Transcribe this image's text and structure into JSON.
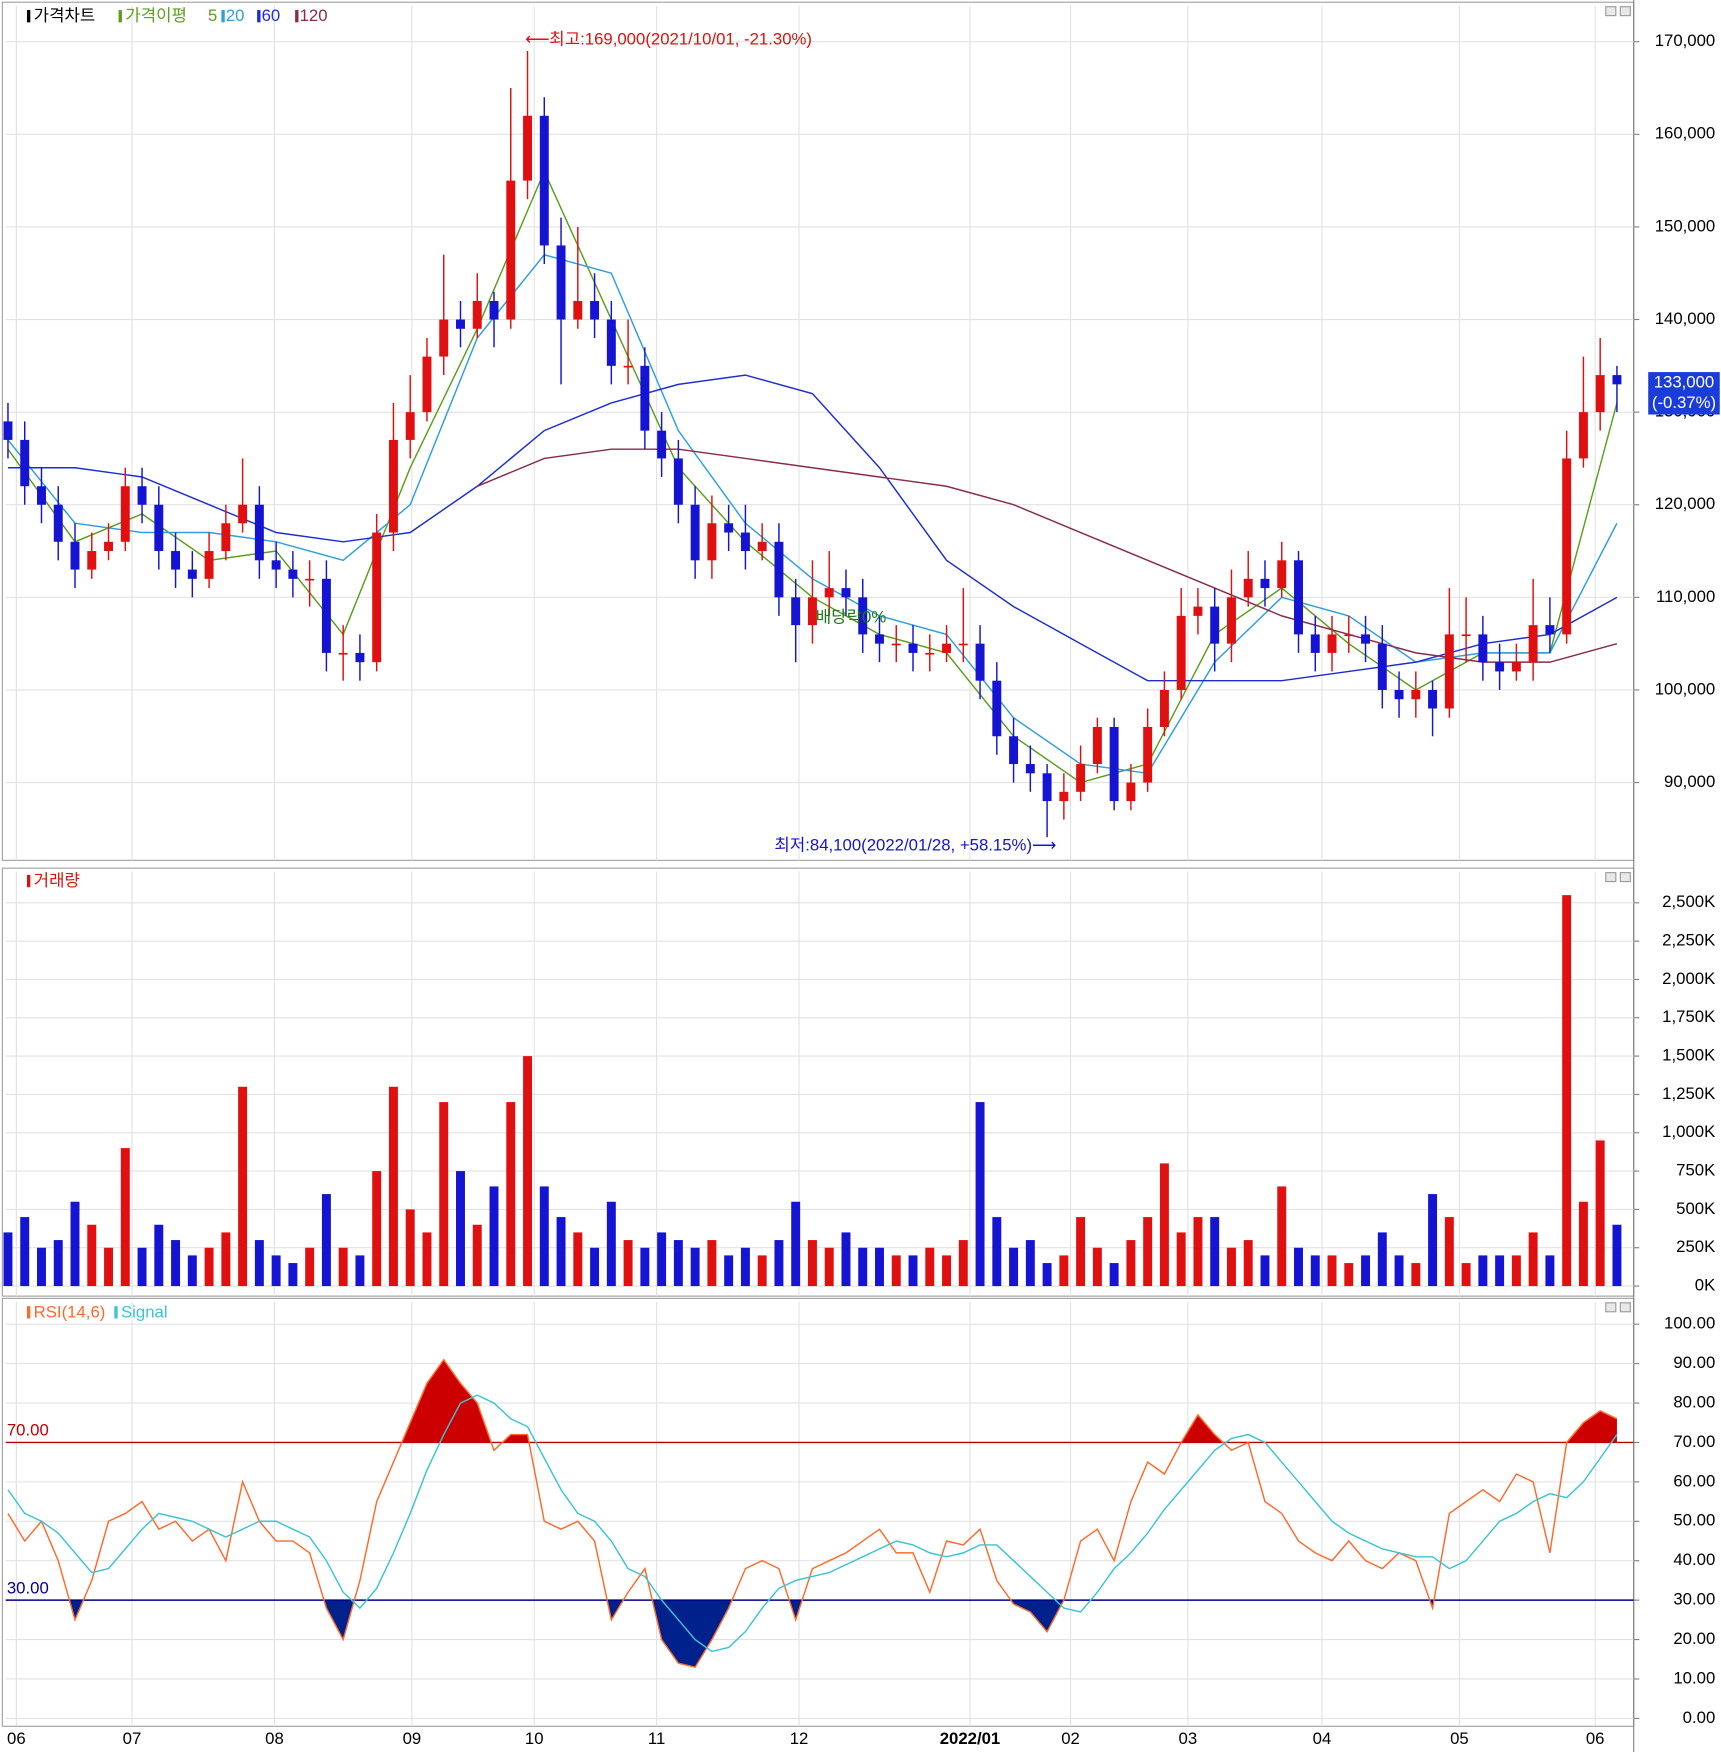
{
  "chart_data": [
    {
      "type": "candlestick",
      "name": "가격차트",
      "up_color": "#e01010",
      "down_color": "#1414d2",
      "open": [
        129000,
        127000,
        122000,
        120000,
        116000,
        113000,
        115000,
        116000,
        122000,
        120000,
        115000,
        113000,
        112000,
        115000,
        118000,
        120000,
        114000,
        113000,
        112000,
        112000,
        104000,
        104000,
        103000,
        117000,
        127000,
        130000,
        136000,
        140000,
        139000,
        142000,
        140000,
        155000,
        162000,
        148000,
        140000,
        142000,
        140000,
        135000,
        135000,
        128000,
        125000,
        120000,
        114000,
        118000,
        117000,
        115000,
        116000,
        110000,
        107000,
        110000,
        111000,
        110000,
        106000,
        105000,
        105000,
        104000,
        104000,
        105000,
        105000,
        101000,
        95000,
        92000,
        91000,
        88000,
        89000,
        92000,
        96000,
        88000,
        90000,
        96000,
        100000,
        108000,
        109000,
        105000,
        110000,
        112000,
        111000,
        114000,
        106000,
        104000,
        106000,
        106000,
        105000,
        100000,
        99000,
        100000,
        98000,
        106000,
        106000,
        103000,
        102000,
        103000,
        107000,
        106000,
        125000,
        130000,
        134000
      ],
      "high": [
        131000,
        129000,
        124000,
        122000,
        118000,
        117000,
        118000,
        124000,
        124000,
        122000,
        117000,
        115000,
        117000,
        120000,
        125000,
        122000,
        116000,
        115000,
        114000,
        114000,
        107000,
        106000,
        119000,
        131000,
        134000,
        138000,
        147000,
        142000,
        145000,
        143000,
        165000,
        169000,
        164000,
        151000,
        150000,
        145000,
        142000,
        140000,
        137000,
        130000,
        127000,
        122000,
        121000,
        120000,
        120000,
        118000,
        118000,
        112000,
        114000,
        115000,
        113000,
        112000,
        108000,
        107000,
        107000,
        106000,
        107000,
        111000,
        107000,
        103000,
        97000,
        94000,
        92000,
        91000,
        94000,
        97000,
        97000,
        92000,
        98000,
        102000,
        111000,
        111000,
        111000,
        113000,
        115000,
        114000,
        116000,
        115000,
        108000,
        108000,
        108000,
        108000,
        107000,
        102000,
        102000,
        101000,
        111000,
        110000,
        108000,
        105000,
        105000,
        112000,
        110000,
        128000,
        136000,
        138000,
        135000
      ],
      "low": [
        125000,
        120000,
        118000,
        114000,
        111000,
        112000,
        114000,
        115000,
        118000,
        113000,
        111000,
        110000,
        111000,
        114000,
        117000,
        112000,
        111000,
        110000,
        109000,
        102000,
        101000,
        101000,
        102000,
        115000,
        125000,
        129000,
        134000,
        137000,
        138000,
        137000,
        139000,
        153000,
        146000,
        133000,
        139000,
        138000,
        133000,
        133000,
        126000,
        123000,
        118000,
        112000,
        112000,
        115000,
        113000,
        114000,
        108000,
        103000,
        105000,
        108000,
        108000,
        104000,
        103000,
        103000,
        102000,
        102000,
        103000,
        103000,
        99000,
        93000,
        90000,
        89000,
        84100,
        86000,
        88000,
        91000,
        87000,
        87000,
        89000,
        95000,
        99000,
        106000,
        102000,
        103000,
        109000,
        109000,
        110000,
        104000,
        102000,
        102000,
        104000,
        103000,
        98000,
        97000,
        97000,
        95000,
        97000,
        103000,
        101000,
        100000,
        101000,
        101000,
        104000,
        105000,
        124000,
        128000,
        130000
      ],
      "close": [
        127000,
        122000,
        120000,
        116000,
        113000,
        115000,
        116000,
        122000,
        120000,
        115000,
        113000,
        112000,
        115000,
        118000,
        120000,
        114000,
        113000,
        112000,
        112000,
        104000,
        104000,
        103000,
        117000,
        127000,
        130000,
        136000,
        140000,
        139000,
        142000,
        140000,
        155000,
        162000,
        148000,
        140000,
        142000,
        140000,
        135000,
        135000,
        128000,
        125000,
        120000,
        114000,
        118000,
        117000,
        115000,
        116000,
        110000,
        107000,
        110000,
        111000,
        110000,
        106000,
        105000,
        105000,
        104000,
        104000,
        105000,
        105000,
        101000,
        95000,
        92000,
        91000,
        88000,
        89000,
        92000,
        96000,
        88000,
        90000,
        96000,
        100000,
        108000,
        109000,
        105000,
        110000,
        112000,
        111000,
        114000,
        106000,
        104000,
        106000,
        106000,
        105000,
        100000,
        99000,
        100000,
        98000,
        106000,
        106000,
        103000,
        102000,
        103000,
        107000,
        106000,
        125000,
        130000,
        134000,
        133000
      ],
      "ma_label": "가격이평",
      "series": [
        {
          "name": "5",
          "color": "#5c9e1e",
          "values": [
            126000,
            116000,
            119000,
            114000,
            115000,
            106000,
            124000,
            139000,
            156000,
            140000,
            124000,
            116000,
            110000,
            106000,
            104000,
            95000,
            90000,
            92000,
            106000,
            111000,
            105000,
            100000,
            104000,
            104000,
            131000
          ]
        },
        {
          "name": "20",
          "color": "#2e9ee0",
          "values": [
            127000,
            118000,
            117000,
            117000,
            116000,
            114000,
            120000,
            138000,
            147000,
            145000,
            128000,
            118000,
            112000,
            108000,
            106000,
            97000,
            92000,
            91000,
            103000,
            110000,
            108000,
            103000,
            104000,
            104000,
            118000
          ]
        },
        {
          "name": "60",
          "color": "#1c2ed0",
          "values": [
            124000,
            124000,
            123000,
            120000,
            117000,
            116000,
            117000,
            122000,
            128000,
            131000,
            133000,
            134000,
            132000,
            124000,
            114000,
            109000,
            105000,
            101000,
            101000,
            101000,
            102000,
            103000,
            105000,
            106000,
            110000
          ]
        },
        {
          "name": "120",
          "color": "#8a2a4c",
          "values": [
            null,
            null,
            null,
            null,
            null,
            null,
            null,
            122000,
            125000,
            126000,
            126000,
            125000,
            124000,
            123000,
            122000,
            120000,
            117000,
            114000,
            111000,
            108000,
            106000,
            104000,
            103000,
            103000,
            105000
          ]
        }
      ],
      "ylim": [
        81600,
        173900
      ],
      "yticks": [
        {
          "value": 90000,
          "label": "90,000"
        },
        {
          "value": 100000,
          "label": "100,000"
        },
        {
          "value": 110000,
          "label": "110,000"
        },
        {
          "value": 120000,
          "label": "120,000"
        },
        {
          "value": 130000,
          "label": "130,000"
        },
        {
          "value": 140000,
          "label": "140,000"
        },
        {
          "value": 150000,
          "label": "150,000"
        },
        {
          "value": 160000,
          "label": "160,000"
        },
        {
          "value": 170000,
          "label": "170,000"
        }
      ],
      "annotations": [
        {
          "text": "⟵최고:169,000(2021/10/01, -21.30%)",
          "color": "#e01010"
        },
        {
          "text": "최저:84,100(2022/01/28, +58.15%)⟶",
          "color": "#1414d2"
        },
        {
          "text": "배당락0%",
          "color": "#1a7a1a"
        }
      ],
      "last_price": {
        "label": "133,000",
        "change": "(-0.37%)"
      },
      "grid": true
    },
    {
      "type": "bar",
      "name": "거래량",
      "values": [
        350000,
        450000,
        250000,
        300000,
        550000,
        400000,
        250000,
        900000,
        250000,
        400000,
        300000,
        200000,
        250000,
        350000,
        1300000,
        300000,
        200000,
        150000,
        250000,
        600000,
        250000,
        200000,
        750000,
        1300000,
        500000,
        350000,
        1200000,
        750000,
        400000,
        650000,
        1200000,
        1500000,
        650000,
        450000,
        350000,
        250000,
        550000,
        300000,
        250000,
        350000,
        300000,
        250000,
        300000,
        200000,
        250000,
        200000,
        300000,
        550000,
        300000,
        250000,
        350000,
        250000,
        250000,
        200000,
        200000,
        250000,
        200000,
        300000,
        1200000,
        450000,
        250000,
        300000,
        150000,
        200000,
        450000,
        250000,
        150000,
        300000,
        450000,
        800000,
        350000,
        450000,
        450000,
        250000,
        300000,
        200000,
        650000,
        250000,
        200000,
        200000,
        150000,
        200000,
        350000,
        200000,
        150000,
        600000,
        450000,
        150000,
        200000,
        200000,
        200000,
        350000,
        200000,
        2550000,
        550000,
        950000,
        400000
      ],
      "ylim": [
        -65600,
        2704000
      ],
      "yticks": [
        {
          "value": 0,
          "label": "0K"
        },
        {
          "value": 250000,
          "label": "250K"
        },
        {
          "value": 500000,
          "label": "500K"
        },
        {
          "value": 750000,
          "label": "750K"
        },
        {
          "value": 1000000,
          "label": "1,000K"
        },
        {
          "value": 1250000,
          "label": "1,250K"
        },
        {
          "value": 1500000,
          "label": "1,500K"
        },
        {
          "value": 1750000,
          "label": "1,750K"
        },
        {
          "value": 2000000,
          "label": "2,000K"
        },
        {
          "value": 2250000,
          "label": "2,250K"
        },
        {
          "value": 2500000,
          "label": "2,500K"
        }
      ],
      "grid": true
    },
    {
      "type": "line",
      "series": [
        {
          "name": "RSI(14,6)",
          "color": "#ff6a2a",
          "values": [
            52,
            45,
            50,
            40,
            25,
            35,
            50,
            52,
            55,
            48,
            50,
            45,
            48,
            40,
            60,
            50,
            45,
            45,
            42,
            28,
            20,
            35,
            55,
            65,
            75,
            85,
            91,
            85,
            80,
            68,
            72,
            72,
            50,
            48,
            50,
            45,
            25,
            32,
            38,
            20,
            14,
            13,
            20,
            28,
            38,
            40,
            38,
            25,
            38,
            40,
            42,
            45,
            48,
            42,
            42,
            32,
            45,
            44,
            48,
            35,
            29,
            27,
            22,
            30,
            45,
            48,
            40,
            55,
            65,
            62,
            70,
            77,
            72,
            68,
            70,
            55,
            52,
            45,
            42,
            40,
            45,
            40,
            38,
            42,
            40,
            28,
            52,
            55,
            58,
            55,
            62,
            60,
            42,
            70,
            75,
            78,
            76
          ]
        },
        {
          "name": "Signal",
          "color": "#3cc4d4",
          "values": [
            58,
            52,
            50,
            47,
            42,
            37,
            38,
            43,
            48,
            52,
            51,
            50,
            48,
            46,
            48,
            50,
            50,
            48,
            46,
            40,
            32,
            28,
            33,
            42,
            52,
            63,
            72,
            80,
            82,
            80,
            76,
            74,
            66,
            58,
            52,
            50,
            45,
            38,
            36,
            30,
            25,
            20,
            17,
            18,
            22,
            28,
            33,
            35,
            36,
            37,
            39,
            41,
            43,
            45,
            44,
            42,
            41,
            42,
            44,
            44,
            40,
            36,
            32,
            28,
            27,
            32,
            38,
            42,
            47,
            53,
            58,
            63,
            68,
            71,
            72,
            70,
            65,
            60,
            55,
            50,
            47,
            45,
            43,
            42,
            41,
            41,
            38,
            40,
            45,
            50,
            52,
            55,
            57,
            56,
            60,
            66,
            72
          ]
        }
      ],
      "levels": [
        {
          "value": 70,
          "label": "70.00",
          "color": "#c00000",
          "fill": "#cc0000"
        },
        {
          "value": 30,
          "label": "30.00",
          "color": "#00008a",
          "fill": "#00208c"
        }
      ],
      "ylim": [
        -2,
        105.7
      ],
      "yticks": [
        {
          "value": 0,
          "label": "0.00"
        },
        {
          "value": 10,
          "label": "10.00"
        },
        {
          "value": 20,
          "label": "20.00"
        },
        {
          "value": 30,
          "label": "30.00"
        },
        {
          "value": 40,
          "label": "40.00"
        },
        {
          "value": 50,
          "label": "50.00"
        },
        {
          "value": 60,
          "label": "60.00"
        },
        {
          "value": 70,
          "label": "70.00"
        },
        {
          "value": 80,
          "label": "80.00"
        },
        {
          "value": 90,
          "label": "90.00"
        },
        {
          "value": 100,
          "label": "100.00"
        }
      ],
      "xticks": [
        {
          "value": 0.5,
          "label": "06"
        },
        {
          "value": 7.4,
          "label": "07"
        },
        {
          "value": 15.9,
          "label": "08"
        },
        {
          "value": 24.1,
          "label": "09"
        },
        {
          "value": 31.4,
          "label": "10"
        },
        {
          "value": 38.7,
          "label": "11"
        },
        {
          "value": 47.2,
          "label": "12"
        },
        {
          "value": 57.4,
          "label": "2022/01"
        },
        {
          "value": 63.4,
          "label": "02"
        },
        {
          "value": 70.4,
          "label": "03"
        },
        {
          "value": 78.4,
          "label": "04"
        },
        {
          "value": 86.6,
          "label": "05"
        },
        {
          "value": 94.7,
          "label": "06"
        }
      ],
      "grid": true
    }
  ]
}
